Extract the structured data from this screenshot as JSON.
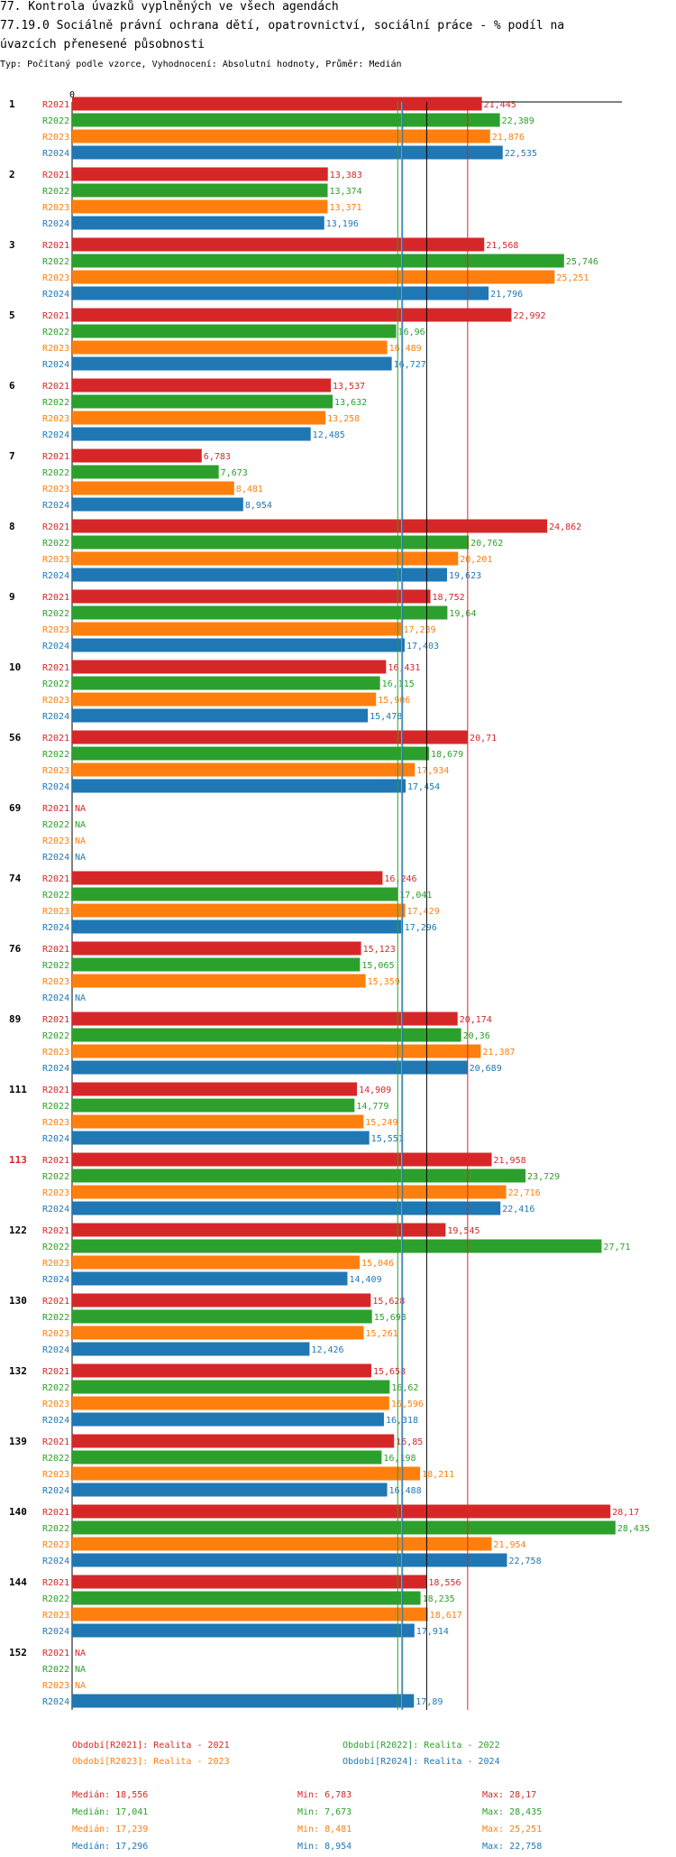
{
  "title_line1": "77. Kontrola úvazků vyplněných ve všech agendách",
  "title_line2": "77.19.0 Sociálně právní ochrana dětí, opatrovnictví, sociální práce - % podíl na",
  "title_line3": "úvazcích přenesené působnosti",
  "subtitle": "Typ: Počítaný podle vzorce, Vyhodnocení: Absolutní hodnoty, Průměr: Medián",
  "colors": {
    "R2021": "#d62728",
    "R2022": "#2ca02c",
    "R2023": "#ff7f0e",
    "R2024": "#1f77b4",
    "highlight": "#d62728"
  },
  "chart_data": {
    "type": "bar",
    "orientation": "horizontal",
    "axis_zero_label": "0",
    "na_label": "NA",
    "series_names": [
      "R2021",
      "R2022",
      "R2023",
      "R2024"
    ],
    "groups": [
      {
        "label": "1",
        "values": [
          "21,445",
          "22,389",
          "21,876",
          "22,535"
        ]
      },
      {
        "label": "2",
        "values": [
          "13,383",
          "13,374",
          "13,371",
          "13,196"
        ]
      },
      {
        "label": "3",
        "values": [
          "21,568",
          "25,746",
          "25,251",
          "21,796"
        ]
      },
      {
        "label": "5",
        "values": [
          "22,992",
          "16,96",
          "16,489",
          "16,727"
        ]
      },
      {
        "label": "6",
        "values": [
          "13,537",
          "13,632",
          "13,258",
          "12,485"
        ]
      },
      {
        "label": "7",
        "values": [
          "6,783",
          "7,673",
          "8,481",
          "8,954"
        ]
      },
      {
        "label": "8",
        "values": [
          "24,862",
          "20,762",
          "20,201",
          "19,623"
        ]
      },
      {
        "label": "9",
        "values": [
          "18,752",
          "19,64",
          "17,239",
          "17,403"
        ]
      },
      {
        "label": "10",
        "values": [
          "16,431",
          "16,115",
          "15,906",
          "15,478"
        ]
      },
      {
        "label": "56",
        "values": [
          "20,71",
          "18,679",
          "17,934",
          "17,454"
        ]
      },
      {
        "label": "69",
        "values": [
          null,
          null,
          null,
          null
        ]
      },
      {
        "label": "74",
        "values": [
          "16,246",
          "17,041",
          "17,429",
          "17,296"
        ]
      },
      {
        "label": "76",
        "values": [
          "15,123",
          "15,065",
          "15,359",
          null
        ]
      },
      {
        "label": "89",
        "values": [
          "20,174",
          "20,36",
          "21,387",
          "20,689"
        ]
      },
      {
        "label": "111",
        "values": [
          "14,909",
          "14,779",
          "15,249",
          "15,551"
        ]
      },
      {
        "label": "113",
        "values": [
          "21,958",
          "23,729",
          "22,716",
          "22,416"
        ],
        "highlight": true
      },
      {
        "label": "122",
        "values": [
          "19,545",
          "27,71",
          "15,046",
          "14,409"
        ]
      },
      {
        "label": "130",
        "values": [
          "15,628",
          "15,693",
          "15,261",
          "12,426"
        ]
      },
      {
        "label": "132",
        "values": [
          "15,658",
          "16,62",
          "16,596",
          "16,318"
        ]
      },
      {
        "label": "139",
        "values": [
          "16,85",
          "16,198",
          "18,211",
          "16,488"
        ]
      },
      {
        "label": "140",
        "values": [
          "28,17",
          "28,435",
          "21,954",
          "22,758"
        ]
      },
      {
        "label": "144",
        "values": [
          "18,556",
          "18,235",
          "18,617",
          "17,914"
        ]
      },
      {
        "label": "152",
        "values": [
          null,
          null,
          null,
          "17,89"
        ]
      }
    ],
    "medians": {
      "R2021": 18.556,
      "R2022": 17.041,
      "R2023": 17.239,
      "R2024": 17.296
    },
    "max_reference_line": 20.7,
    "x_range": [
      0,
      28.435
    ]
  },
  "legend": [
    {
      "label": "Období[R2021]: Realita - 2021"
    },
    {
      "label": "Období[R2022]: Realita - 2022"
    },
    {
      "label": "Období[R2023]: Realita - 2023"
    },
    {
      "label": "Období[R2024]: Realita - 2024"
    }
  ],
  "stats": [
    {
      "median": "Medián: 18,556",
      "min": "Min: 6,783",
      "max": "Max: 28,17"
    },
    {
      "median": "Medián: 17,041",
      "min": "Min: 7,673",
      "max": "Max: 28,435"
    },
    {
      "median": "Medián: 17,239",
      "min": "Min: 8,481",
      "max": "Max: 25,251"
    },
    {
      "median": "Medián: 17,296",
      "min": "Min: 8,954",
      "max": "Max: 22,758"
    }
  ]
}
